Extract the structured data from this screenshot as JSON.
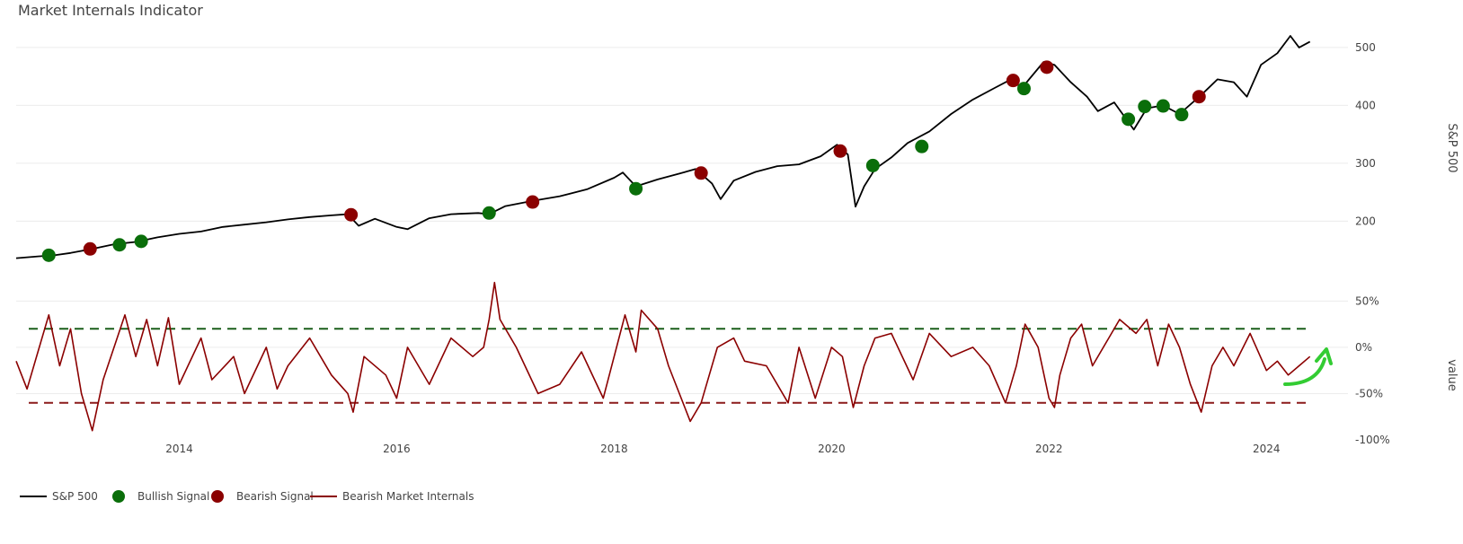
{
  "chart_data": {
    "title": "Market Internals Indicator",
    "x_ticks": [
      "2014",
      "2016",
      "2018",
      "2020",
      "2022",
      "2024"
    ],
    "x_range": [
      2012.5,
      2024.75
    ],
    "panels": [
      {
        "id": "price",
        "type": "line",
        "ylabel": "S&P 500",
        "y_ticks": [
          200,
          300,
          400,
          500
        ],
        "ylim": [
          140,
          520
        ],
        "series": [
          {
            "name": "S&P 500",
            "color": "#000000",
            "points": [
              [
                2012.5,
                136
              ],
              [
                2012.7,
                139
              ],
              [
                2012.85,
                141
              ],
              [
                2013.0,
                145
              ],
              [
                2013.2,
                152
              ],
              [
                2013.4,
                160
              ],
              [
                2013.6,
                164
              ],
              [
                2013.8,
                172
              ],
              [
                2014.0,
                178
              ],
              [
                2014.2,
                182
              ],
              [
                2014.4,
                190
              ],
              [
                2014.6,
                194
              ],
              [
                2014.8,
                198
              ],
              [
                2015.0,
                203
              ],
              [
                2015.2,
                207
              ],
              [
                2015.4,
                210
              ],
              [
                2015.55,
                212
              ],
              [
                2015.65,
                192
              ],
              [
                2015.8,
                204
              ],
              [
                2016.0,
                190
              ],
              [
                2016.1,
                186
              ],
              [
                2016.3,
                205
              ],
              [
                2016.5,
                212
              ],
              [
                2016.75,
                214
              ],
              [
                2016.85,
                212
              ],
              [
                2017.0,
                226
              ],
              [
                2017.25,
                235
              ],
              [
                2017.5,
                243
              ],
              [
                2017.75,
                255
              ],
              [
                2018.0,
                275
              ],
              [
                2018.08,
                284
              ],
              [
                2018.2,
                260
              ],
              [
                2018.4,
                272
              ],
              [
                2018.6,
                282
              ],
              [
                2018.75,
                290
              ],
              [
                2018.9,
                265
              ],
              [
                2018.98,
                238
              ],
              [
                2019.1,
                270
              ],
              [
                2019.3,
                285
              ],
              [
                2019.5,
                295
              ],
              [
                2019.7,
                298
              ],
              [
                2019.9,
                312
              ],
              [
                2020.05,
                332
              ],
              [
                2020.15,
                315
              ],
              [
                2020.22,
                225
              ],
              [
                2020.3,
                260
              ],
              [
                2020.4,
                290
              ],
              [
                2020.55,
                310
              ],
              [
                2020.7,
                335
              ],
              [
                2020.9,
                355
              ],
              [
                2021.1,
                385
              ],
              [
                2021.3,
                410
              ],
              [
                2021.5,
                430
              ],
              [
                2021.65,
                445
              ],
              [
                2021.75,
                430
              ],
              [
                2021.95,
                475
              ],
              [
                2022.05,
                470
              ],
              [
                2022.2,
                440
              ],
              [
                2022.35,
                415
              ],
              [
                2022.45,
                390
              ],
              [
                2022.6,
                405
              ],
              [
                2022.78,
                358
              ],
              [
                2022.9,
                395
              ],
              [
                2023.05,
                400
              ],
              [
                2023.2,
                385
              ],
              [
                2023.4,
                418
              ],
              [
                2023.55,
                445
              ],
              [
                2023.7,
                440
              ],
              [
                2023.82,
                415
              ],
              [
                2023.95,
                470
              ],
              [
                2024.1,
                490
              ],
              [
                2024.22,
                520
              ],
              [
                2024.3,
                500
              ],
              [
                2024.4,
                510
              ]
            ]
          },
          {
            "name": "Bullish Signal",
            "color": "#0a6e0a",
            "points": [
              [
                2012.8,
                141
              ],
              [
                2013.45,
                159
              ],
              [
                2013.65,
                165
              ],
              [
                2016.85,
                214
              ],
              [
                2018.2,
                256
              ],
              [
                2020.38,
                296
              ],
              [
                2020.83,
                329
              ],
              [
                2021.77,
                429
              ],
              [
                2022.73,
                376
              ],
              [
                2022.88,
                398
              ],
              [
                2023.05,
                399
              ],
              [
                2023.22,
                384
              ]
            ]
          },
          {
            "name": "Bearish Signal",
            "color": "#8b0000",
            "points": [
              [
                2013.18,
                152
              ],
              [
                2015.58,
                211
              ],
              [
                2017.25,
                233
              ],
              [
                2018.8,
                283
              ],
              [
                2020.08,
                321
              ],
              [
                2021.67,
                443
              ],
              [
                2021.98,
                466
              ],
              [
                2023.38,
                415
              ]
            ]
          }
        ]
      },
      {
        "id": "internals",
        "type": "line",
        "ylabel": "value",
        "y_ticks": [
          "50%",
          "0%",
          "-50%",
          "-100%"
        ],
        "y_tick_values": [
          0.5,
          0.0,
          -0.5,
          -1.0
        ],
        "ylim": [
          -1.0,
          0.6
        ],
        "reference_lines": [
          {
            "value": 0.2,
            "color": "#1a5e1a",
            "style": "dashed"
          },
          {
            "value": -0.6,
            "color": "#8b1a1a",
            "style": "dashed"
          }
        ],
        "series": [
          {
            "name": "Bearish Market Internals",
            "color": "#8b0000",
            "points": [
              [
                2012.5,
                -0.15
              ],
              [
                2012.6,
                -0.45
              ],
              [
                2012.7,
                -0.05
              ],
              [
                2012.8,
                0.35
              ],
              [
                2012.9,
                -0.2
              ],
              [
                2013.0,
                0.2
              ],
              [
                2013.1,
                -0.5
              ],
              [
                2013.2,
                -0.9
              ],
              [
                2013.3,
                -0.35
              ],
              [
                2013.4,
                0.0
              ],
              [
                2013.5,
                0.35
              ],
              [
                2013.6,
                -0.1
              ],
              [
                2013.7,
                0.3
              ],
              [
                2013.8,
                -0.2
              ],
              [
                2013.9,
                0.32
              ],
              [
                2014.0,
                -0.4
              ],
              [
                2014.2,
                0.1
              ],
              [
                2014.3,
                -0.35
              ],
              [
                2014.5,
                -0.1
              ],
              [
                2014.6,
                -0.5
              ],
              [
                2014.8,
                0.0
              ],
              [
                2014.9,
                -0.45
              ],
              [
                2015.0,
                -0.2
              ],
              [
                2015.2,
                0.1
              ],
              [
                2015.4,
                -0.3
              ],
              [
                2015.55,
                -0.5
              ],
              [
                2015.6,
                -0.7
              ],
              [
                2015.7,
                -0.1
              ],
              [
                2015.9,
                -0.3
              ],
              [
                2016.0,
                -0.55
              ],
              [
                2016.1,
                0.0
              ],
              [
                2016.3,
                -0.4
              ],
              [
                2016.5,
                0.1
              ],
              [
                2016.7,
                -0.1
              ],
              [
                2016.8,
                0.0
              ],
              [
                2016.85,
                0.3
              ],
              [
                2016.9,
                0.7
              ],
              [
                2016.95,
                0.3
              ],
              [
                2017.1,
                0.0
              ],
              [
                2017.3,
                -0.5
              ],
              [
                2017.5,
                -0.4
              ],
              [
                2017.7,
                -0.05
              ],
              [
                2017.9,
                -0.55
              ],
              [
                2018.1,
                0.35
              ],
              [
                2018.2,
                -0.05
              ],
              [
                2018.25,
                0.4
              ],
              [
                2018.4,
                0.2
              ],
              [
                2018.5,
                -0.2
              ],
              [
                2018.7,
                -0.8
              ],
              [
                2018.8,
                -0.6
              ],
              [
                2018.95,
                0.0
              ],
              [
                2019.1,
                0.1
              ],
              [
                2019.2,
                -0.15
              ],
              [
                2019.4,
                -0.2
              ],
              [
                2019.6,
                -0.6
              ],
              [
                2019.7,
                0.0
              ],
              [
                2019.85,
                -0.55
              ],
              [
                2020.0,
                0.0
              ],
              [
                2020.1,
                -0.1
              ],
              [
                2020.2,
                -0.65
              ],
              [
                2020.3,
                -0.2
              ],
              [
                2020.4,
                0.1
              ],
              [
                2020.55,
                0.15
              ],
              [
                2020.75,
                -0.35
              ],
              [
                2020.9,
                0.15
              ],
              [
                2021.1,
                -0.1
              ],
              [
                2021.3,
                0.0
              ],
              [
                2021.45,
                -0.2
              ],
              [
                2021.6,
                -0.6
              ],
              [
                2021.7,
                -0.2
              ],
              [
                2021.78,
                0.25
              ],
              [
                2021.9,
                0.0
              ],
              [
                2022.0,
                -0.55
              ],
              [
                2022.05,
                -0.65
              ],
              [
                2022.1,
                -0.3
              ],
              [
                2022.2,
                0.1
              ],
              [
                2022.3,
                0.25
              ],
              [
                2022.4,
                -0.2
              ],
              [
                2022.55,
                0.1
              ],
              [
                2022.65,
                0.3
              ],
              [
                2022.8,
                0.15
              ],
              [
                2022.9,
                0.3
              ],
              [
                2023.0,
                -0.2
              ],
              [
                2023.1,
                0.25
              ],
              [
                2023.2,
                0.0
              ],
              [
                2023.3,
                -0.4
              ],
              [
                2023.4,
                -0.7
              ],
              [
                2023.5,
                -0.2
              ],
              [
                2023.6,
                0.0
              ],
              [
                2023.7,
                -0.2
              ],
              [
                2023.85,
                0.15
              ],
              [
                2024.0,
                -0.25
              ],
              [
                2024.1,
                -0.15
              ],
              [
                2024.2,
                -0.3
              ],
              [
                2024.3,
                -0.2
              ],
              [
                2024.4,
                -0.1
              ]
            ]
          }
        ]
      }
    ],
    "legend": {
      "placement": "bottom-left",
      "entries": [
        {
          "label": "S&P 500",
          "symbol": "line",
          "color": "#000000"
        },
        {
          "label": "Bullish Signal",
          "symbol": "circle",
          "color": "#0a6e0a"
        },
        {
          "label": "Bearish Signal",
          "symbol": "circle",
          "color": "#8b0000"
        },
        {
          "label": "Bearish Market Internals",
          "symbol": "line",
          "color": "#8b0000"
        }
      ]
    },
    "annotation": {
      "type": "curved-arrow",
      "color": "#33cc33",
      "meaning": "internals turning up"
    }
  }
}
